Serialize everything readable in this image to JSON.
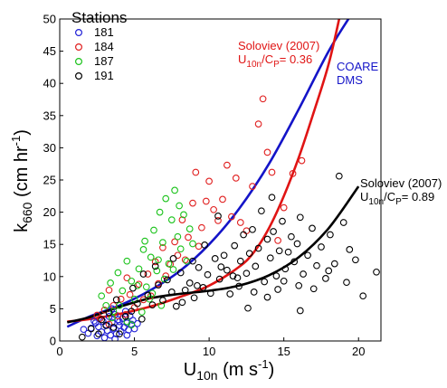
{
  "chart_data": {
    "type": "scatter",
    "xlim": [
      0,
      21.5
    ],
    "ylim": [
      0,
      50
    ],
    "xticks": [
      0,
      5,
      10,
      15,
      20
    ],
    "yticks": [
      0,
      5,
      10,
      15,
      20,
      25,
      30,
      35,
      40,
      45,
      50
    ],
    "grid": false,
    "legend": {
      "title": "Stations",
      "placement": "top-left",
      "entries": [
        {
          "name": "181",
          "color": "#1f1fd6"
        },
        {
          "name": "184",
          "color": "#e01e1e"
        },
        {
          "name": "187",
          "color": "#19c219"
        },
        {
          "name": "191",
          "color": "#000000"
        }
      ]
    },
    "xlabel": {
      "main": "U",
      "sub": "10n",
      "unit_pre": " (m s",
      "sup": "-1",
      "unit_post": ")"
    },
    "ylabel": {
      "main": "k",
      "sub": "660",
      "unit_pre": " (cm hr",
      "sup": "-1",
      "unit_post": ")"
    },
    "curves": [
      {
        "name": "COARE DMS",
        "color": "#1414c8",
        "points": [
          [
            0.5,
            2.2
          ],
          [
            2,
            3.8
          ],
          [
            4,
            5.5
          ],
          [
            6,
            7.8
          ],
          [
            8,
            10.8
          ],
          [
            10,
            15
          ],
          [
            12,
            20.5
          ],
          [
            14,
            27.5
          ],
          [
            16,
            36
          ],
          [
            18,
            45
          ],
          [
            19.6,
            51
          ]
        ]
      },
      {
        "name": "Soloviev (2007) U10n/CP = 0.36",
        "color": "#e01414",
        "points": [
          [
            0.5,
            3
          ],
          [
            2,
            3.4
          ],
          [
            4,
            4.2
          ],
          [
            6,
            5.3
          ],
          [
            8,
            6.8
          ],
          [
            10,
            8.6
          ],
          [
            12,
            11.5
          ],
          [
            13,
            13.8
          ],
          [
            14,
            17.5
          ],
          [
            15,
            22.5
          ],
          [
            16,
            28.5
          ],
          [
            17,
            35.5
          ],
          [
            18,
            43
          ],
          [
            18.8,
            51
          ]
        ]
      },
      {
        "name": "Soloviev (2007) U10n/CP = 0.89",
        "color": "#000000",
        "points": [
          [
            0.5,
            2.9
          ],
          [
            2,
            3.7
          ],
          [
            4,
            5.3
          ],
          [
            6,
            6.6
          ],
          [
            8,
            7.3
          ],
          [
            10,
            7.8
          ],
          [
            12,
            8.6
          ],
          [
            14,
            10.2
          ],
          [
            16,
            13
          ],
          [
            18,
            17.5
          ],
          [
            20,
            24
          ]
        ]
      }
    ],
    "annotations": [
      {
        "lines": [
          "Soloviev (2007)"
        ],
        "ratio": {
          "u": "U",
          "sub1": "10n",
          "c": "/C",
          "sub2": "P",
          "eq": "= 0.36"
        },
        "color": "#e01414"
      },
      {
        "lines": [
          "COARE",
          "DMS"
        ],
        "color": "#1414c8"
      },
      {
        "lines": [
          "Soloviev (2007)"
        ],
        "ratio": {
          "u": "U",
          "sub1": "10n",
          "c": "/C",
          "sub2": "P",
          "eq": "= 0.89"
        },
        "color": "#000000"
      }
    ],
    "series": [
      {
        "name": "181",
        "color": "#1f1fd6",
        "points": [
          [
            1.6,
            1.8
          ],
          [
            1.9,
            1.2
          ],
          [
            2.1,
            2.0
          ],
          [
            2.3,
            3.1
          ],
          [
            2.5,
            0.8
          ],
          [
            2.6,
            2.2
          ],
          [
            2.8,
            1.4
          ],
          [
            2.9,
            3.0
          ],
          [
            3.0,
            0.5
          ],
          [
            3.1,
            2.5
          ],
          [
            3.2,
            1.6
          ],
          [
            3.3,
            3.8
          ],
          [
            3.4,
            0.9
          ],
          [
            3.5,
            2.9
          ],
          [
            3.6,
            1.9
          ],
          [
            3.7,
            4.1
          ],
          [
            3.8,
            1.1
          ],
          [
            3.9,
            3.3
          ],
          [
            4.0,
            2.4
          ],
          [
            4.1,
            1.5
          ],
          [
            4.2,
            3.5
          ],
          [
            4.3,
            2.1
          ],
          [
            4.4,
            4.6
          ],
          [
            4.5,
            2.8
          ],
          [
            4.6,
            1.7
          ],
          [
            4.7,
            3.9
          ],
          [
            4.8,
            2.6
          ],
          [
            4.9,
            3.2
          ],
          [
            5.0,
            1.9
          ],
          [
            5.2,
            2.7
          ],
          [
            3.7,
            0.3
          ],
          [
            2.4,
            2.8
          ],
          [
            3.5,
            5.0
          ],
          [
            4.0,
            3.0
          ],
          [
            4.5,
            0.9
          ]
        ]
      },
      {
        "name": "184",
        "color": "#e01e1e",
        "points": [
          [
            2.7,
            3.5
          ],
          [
            3.0,
            4.8
          ],
          [
            3.3,
            2.6
          ],
          [
            3.6,
            5.5
          ],
          [
            3.9,
            3.9
          ],
          [
            4.1,
            6.5
          ],
          [
            4.4,
            4.1
          ],
          [
            4.7,
            7.2
          ],
          [
            5.0,
            5.2
          ],
          [
            5.3,
            8.8
          ],
          [
            5.6,
            6.4
          ],
          [
            5.9,
            10.4
          ],
          [
            6.1,
            7.0
          ],
          [
            6.4,
            12.3
          ],
          [
            6.6,
            8.9
          ],
          [
            6.9,
            14.5
          ],
          [
            7.1,
            10.1
          ],
          [
            7.4,
            11.9
          ],
          [
            7.7,
            15.4
          ],
          [
            7.9,
            13.3
          ],
          [
            8.2,
            18.8
          ],
          [
            8.4,
            12.6
          ],
          [
            8.6,
            16.1
          ],
          [
            8.9,
            21.4
          ],
          [
            9.1,
            26.2
          ],
          [
            9.3,
            14.7
          ],
          [
            9.5,
            17.6
          ],
          [
            9.8,
            21.7
          ],
          [
            10.0,
            24.8
          ],
          [
            10.3,
            20.4
          ],
          [
            10.6,
            18.7
          ],
          [
            10.9,
            22.0
          ],
          [
            11.2,
            27.3
          ],
          [
            11.5,
            19.3
          ],
          [
            11.8,
            25.3
          ],
          [
            12.1,
            18.4
          ],
          [
            12.5,
            17.1
          ],
          [
            12.9,
            24.0
          ],
          [
            13.3,
            33.7
          ],
          [
            13.6,
            37.6
          ],
          [
            13.9,
            29.3
          ],
          [
            14.2,
            26.2
          ],
          [
            14.6,
            15.6
          ],
          [
            15.0,
            20.7
          ],
          [
            15.6,
            26.0
          ],
          [
            16.2,
            28.0
          ],
          [
            3.3,
            7.9
          ],
          [
            4.5,
            9.8
          ],
          [
            2.5,
            4.0
          ]
        ]
      },
      {
        "name": "187",
        "color": "#19c219",
        "points": [
          [
            2.8,
            7.0
          ],
          [
            3.1,
            5.5
          ],
          [
            3.4,
            9.0
          ],
          [
            3.6,
            4.6
          ],
          [
            3.9,
            10.6
          ],
          [
            4.2,
            7.8
          ],
          [
            4.5,
            12.4
          ],
          [
            4.8,
            9.3
          ],
          [
            5.0,
            6.5
          ],
          [
            5.3,
            11.2
          ],
          [
            5.6,
            14.2
          ],
          [
            5.8,
            8.4
          ],
          [
            6.1,
            13.0
          ],
          [
            6.3,
            17.2
          ],
          [
            6.5,
            10.9
          ],
          [
            6.7,
            20.0
          ],
          [
            6.9,
            15.3
          ],
          [
            7.1,
            22.1
          ],
          [
            7.3,
            12.0
          ],
          [
            7.5,
            18.8
          ],
          [
            7.7,
            23.4
          ],
          [
            7.9,
            16.2
          ],
          [
            8.1,
            14.3
          ],
          [
            8.3,
            19.6
          ],
          [
            8.5,
            12.4
          ],
          [
            8.7,
            17.4
          ],
          [
            8.9,
            15.1
          ],
          [
            7.0,
            9.6
          ],
          [
            6.0,
            6.5
          ],
          [
            5.5,
            4.5
          ],
          [
            4.5,
            3.0
          ],
          [
            4.0,
            5.5
          ],
          [
            5.2,
            8.6
          ],
          [
            6.6,
            12.6
          ],
          [
            7.6,
            11.1
          ],
          [
            6.2,
            7.4
          ],
          [
            8.0,
            21.0
          ],
          [
            5.7,
            15.5
          ],
          [
            4.8,
            2.5
          ],
          [
            3.5,
            3.6
          ],
          [
            6.8,
            5.5
          ]
        ]
      },
      {
        "name": "191",
        "color": "#000000",
        "points": [
          [
            1.5,
            0.6
          ],
          [
            2.1,
            1.9
          ],
          [
            2.6,
            1.1
          ],
          [
            3.1,
            2.4
          ],
          [
            3.6,
            2.1
          ],
          [
            4.0,
            1.1
          ],
          [
            4.4,
            3.8
          ],
          [
            4.8,
            4.6
          ],
          [
            5.2,
            5.8
          ],
          [
            5.5,
            3.4
          ],
          [
            5.9,
            7.1
          ],
          [
            6.2,
            5.6
          ],
          [
            6.6,
            8.7
          ],
          [
            6.9,
            6.3
          ],
          [
            7.2,
            9.5
          ],
          [
            7.5,
            7.6
          ],
          [
            7.8,
            5.4
          ],
          [
            8.1,
            10.6
          ],
          [
            8.4,
            7.9
          ],
          [
            8.7,
            9.0
          ],
          [
            9.0,
            6.7
          ],
          [
            9.3,
            11.4
          ],
          [
            9.6,
            8.3
          ],
          [
            9.9,
            10.3
          ],
          [
            10.1,
            7.4
          ],
          [
            10.4,
            12.8
          ],
          [
            10.7,
            9.6
          ],
          [
            11.0,
            13.3
          ],
          [
            11.2,
            11.0
          ],
          [
            11.4,
            7.3
          ],
          [
            11.7,
            14.8
          ],
          [
            11.9,
            9.8
          ],
          [
            12.1,
            12.4
          ],
          [
            12.3,
            16.5
          ],
          [
            12.5,
            10.5
          ],
          [
            12.7,
            13.6
          ],
          [
            12.9,
            17.3
          ],
          [
            13.1,
            11.6
          ],
          [
            13.3,
            14.4
          ],
          [
            13.5,
            20.2
          ],
          [
            13.7,
            9.2
          ],
          [
            13.9,
            15.8
          ],
          [
            14.1,
            12.9
          ],
          [
            14.3,
            17.0
          ],
          [
            14.5,
            10.1
          ],
          [
            14.7,
            14.0
          ],
          [
            14.9,
            18.6
          ],
          [
            15.1,
            11.2
          ],
          [
            15.3,
            13.8
          ],
          [
            15.5,
            16.2
          ],
          [
            15.7,
            12.3
          ],
          [
            15.9,
            15.1
          ],
          [
            16.1,
            19.2
          ],
          [
            16.3,
            10.4
          ],
          [
            16.6,
            13.3
          ],
          [
            16.9,
            17.5
          ],
          [
            17.2,
            11.7
          ],
          [
            17.5,
            14.6
          ],
          [
            17.8,
            9.7
          ],
          [
            18.1,
            16.5
          ],
          [
            18.4,
            12.0
          ],
          [
            18.7,
            25.6
          ],
          [
            19.0,
            18.4
          ],
          [
            19.4,
            14.2
          ],
          [
            19.8,
            12.6
          ],
          [
            20.3,
            7.0
          ],
          [
            21.2,
            10.7
          ],
          [
            14.2,
            22.3
          ],
          [
            13.9,
            6.8
          ],
          [
            12.6,
            5.1
          ],
          [
            16.1,
            4.7
          ],
          [
            10.6,
            19.4
          ],
          [
            9.7,
            14.9
          ],
          [
            8.9,
            12.4
          ],
          [
            7.6,
            12.8
          ],
          [
            6.4,
            11.6
          ],
          [
            5.6,
            10.4
          ],
          [
            4.9,
            8.2
          ],
          [
            3.8,
            6.4
          ],
          [
            3.3,
            4.4
          ],
          [
            2.8,
            3.3
          ],
          [
            12.0,
            8.5
          ],
          [
            13.0,
            7.6
          ],
          [
            14.6,
            8.0
          ],
          [
            15.0,
            9.3
          ],
          [
            16.0,
            8.6
          ],
          [
            17.0,
            8.1
          ],
          [
            18.0,
            10.9
          ],
          [
            19.2,
            9.1
          ],
          [
            11.6,
            10.1
          ],
          [
            10.8,
            11.5
          ],
          [
            9.2,
            8.6
          ],
          [
            8.2,
            6.0
          ]
        ]
      }
    ]
  }
}
